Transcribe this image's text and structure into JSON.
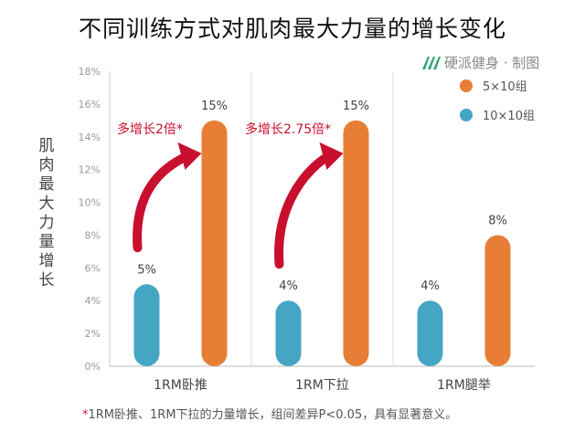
{
  "title": "不同训练方式对肌肉最大力量的增长变化",
  "brand": {
    "text": "硬派健身 · 制图",
    "icon": "leaf-logo-icon"
  },
  "ylabel": "肌肉最大力量增长",
  "footnote": {
    "star": "*",
    "text": "1RM卧推、1RM下拉的力量增长，组间差异P<0.05，具有显著意义。"
  },
  "colors": {
    "orange": "#e87e35",
    "blue": "#45a6c4",
    "red": "#c8102e"
  },
  "chart_data": {
    "type": "bar",
    "categories": [
      "1RM卧推",
      "1RM下拉",
      "1RM腿举"
    ],
    "series": [
      {
        "name": "10×10组",
        "values": [
          5,
          4,
          4
        ],
        "labels": [
          "5%",
          "4%",
          "4%"
        ]
      },
      {
        "name": "5×10组",
        "values": [
          15,
          15,
          8
        ],
        "labels": [
          "15%",
          "15%",
          "8%"
        ]
      }
    ],
    "yticks": [
      "0%",
      "2%",
      "4%",
      "6%",
      "8%",
      "10%",
      "12%",
      "14%",
      "16%",
      "18%"
    ],
    "ylim": [
      0,
      18
    ],
    "grid": false,
    "legend_position": "top-right",
    "annotations": [
      {
        "category": "1RM卧推",
        "text": "多增长2倍*"
      },
      {
        "category": "1RM下拉",
        "text": "多增长2.75倍*"
      }
    ]
  }
}
